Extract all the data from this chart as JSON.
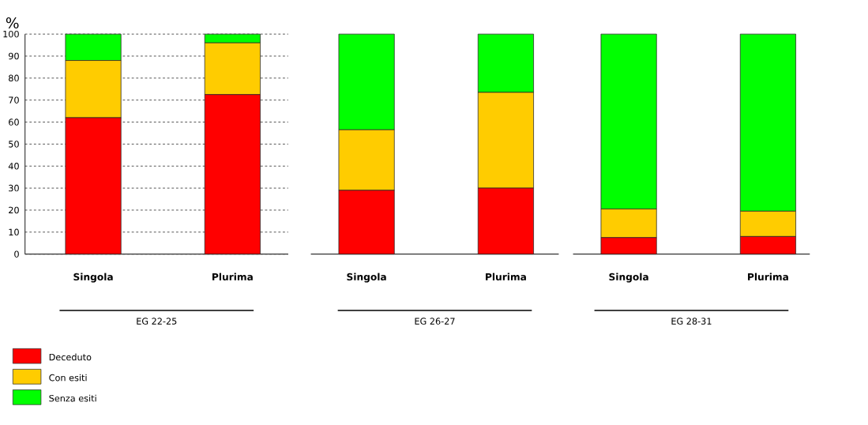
{
  "chart_data": [
    {
      "type": "bar",
      "stacked": true,
      "ylabel": "%",
      "xlabel": "EG 22-25",
      "categories": [
        "Singola",
        "Plurima"
      ],
      "series": [
        {
          "name": "Deceduto",
          "color": "#ff0000",
          "values": [
            62,
            72.5
          ]
        },
        {
          "name": "Con esiti",
          "color": "#ffcc00",
          "values": [
            26,
            23.5
          ]
        },
        {
          "name": "Senza esiti",
          "color": "#00ff00",
          "values": [
            12,
            4
          ]
        }
      ],
      "ylim": [
        0,
        100
      ],
      "yticks": [
        0,
        10,
        20,
        30,
        40,
        50,
        60,
        70,
        80,
        90,
        100
      ],
      "grid": "y",
      "legend": "bottom left"
    },
    {
      "type": "bar",
      "stacked": true,
      "xlabel": "EG 26-27",
      "categories": [
        "Singola",
        "Plurima"
      ],
      "series": [
        {
          "color": "#ff0000",
          "values": [
            29,
            30
          ]
        },
        {
          "color": "#ffcc00",
          "values": [
            27.5,
            43.5
          ]
        },
        {
          "color": "#00ff00",
          "values": [
            43.5,
            26.5
          ]
        }
      ],
      "ylim": [
        0,
        100
      ],
      "yticks": [
        0,
        10,
        20,
        30,
        40,
        50,
        60,
        70,
        80,
        90,
        100
      ],
      "grid": "y",
      "tick_labels": "x"
    },
    {
      "type": "bar",
      "stacked": true,
      "xlabel": "EG 28-31",
      "categories": [
        "Singola",
        "Plurima"
      ],
      "series": [
        {
          "color": "#ff0000",
          "values": [
            7.5,
            8
          ]
        },
        {
          "color": "#ffcc00",
          "values": [
            13,
            11.5
          ]
        },
        {
          "color": "#00ff00",
          "values": [
            79.5,
            80.5
          ]
        }
      ],
      "ylim": [
        0,
        100
      ],
      "yticks": [
        0,
        10,
        20,
        30,
        40,
        50,
        60,
        70,
        80,
        90,
        100
      ],
      "grid": "y",
      "tick_labels": "x"
    }
  ]
}
